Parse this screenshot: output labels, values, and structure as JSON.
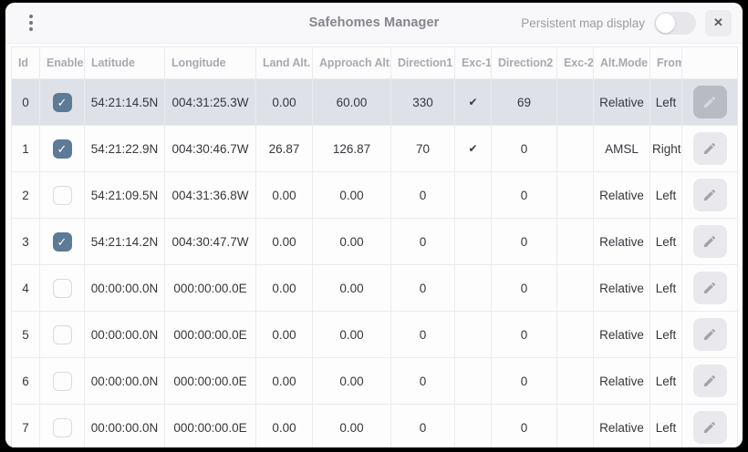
{
  "window": {
    "title": "Safehomes Manager",
    "persistent_toggle": {
      "label": "Persistent map display",
      "state": "off"
    },
    "close_glyph": "✕"
  },
  "glyphs": {
    "checkbox_check": "✓",
    "exc_check": "✔"
  },
  "colors": {
    "checkbox_checked": "#5d7a96",
    "selected_row": "#dee2e8",
    "titlebar_bg": "#f8f7f9",
    "header_text": "#a9a9b2",
    "cell_text": "#37373c"
  },
  "table": {
    "columns": [
      "Id",
      "Enable",
      "Latitude",
      "Longitude",
      "Land Alt.",
      "Approach Alt.",
      "Direction1",
      "Exc-1",
      "Direction2",
      "Exc-2",
      "Alt.Mode",
      "From",
      ""
    ],
    "rows": [
      {
        "id": "0",
        "enabled": true,
        "selected": true,
        "latitude": "54:21:14.5N",
        "longitude": "004:31:25.3W",
        "land_alt": "0.00",
        "approach_alt": "60.00",
        "direction1": "330",
        "exc1": true,
        "direction2": "69",
        "exc2": false,
        "alt_mode": "Relative",
        "from": "Left"
      },
      {
        "id": "1",
        "enabled": true,
        "selected": false,
        "latitude": "54:21:22.9N",
        "longitude": "004:30:46.7W",
        "land_alt": "26.87",
        "approach_alt": "126.87",
        "direction1": "70",
        "exc1": true,
        "direction2": "0",
        "exc2": false,
        "alt_mode": "AMSL",
        "from": "Right"
      },
      {
        "id": "2",
        "enabled": false,
        "selected": false,
        "latitude": "54:21:09.5N",
        "longitude": "004:31:36.8W",
        "land_alt": "0.00",
        "approach_alt": "0.00",
        "direction1": "0",
        "exc1": false,
        "direction2": "0",
        "exc2": false,
        "alt_mode": "Relative",
        "from": "Left"
      },
      {
        "id": "3",
        "enabled": true,
        "selected": false,
        "latitude": "54:21:14.2N",
        "longitude": "004:30:47.7W",
        "land_alt": "0.00",
        "approach_alt": "0.00",
        "direction1": "0",
        "exc1": false,
        "direction2": "0",
        "exc2": false,
        "alt_mode": "Relative",
        "from": "Left"
      },
      {
        "id": "4",
        "enabled": false,
        "selected": false,
        "latitude": "00:00:00.0N",
        "longitude": "000:00:00.0E",
        "land_alt": "0.00",
        "approach_alt": "0.00",
        "direction1": "0",
        "exc1": false,
        "direction2": "0",
        "exc2": false,
        "alt_mode": "Relative",
        "from": "Left"
      },
      {
        "id": "5",
        "enabled": false,
        "selected": false,
        "latitude": "00:00:00.0N",
        "longitude": "000:00:00.0E",
        "land_alt": "0.00",
        "approach_alt": "0.00",
        "direction1": "0",
        "exc1": false,
        "direction2": "0",
        "exc2": false,
        "alt_mode": "Relative",
        "from": "Left"
      },
      {
        "id": "6",
        "enabled": false,
        "selected": false,
        "latitude": "00:00:00.0N",
        "longitude": "000:00:00.0E",
        "land_alt": "0.00",
        "approach_alt": "0.00",
        "direction1": "0",
        "exc1": false,
        "direction2": "0",
        "exc2": false,
        "alt_mode": "Relative",
        "from": "Left"
      },
      {
        "id": "7",
        "enabled": false,
        "selected": false,
        "latitude": "00:00:00.0N",
        "longitude": "000:00:00.0E",
        "land_alt": "0.00",
        "approach_alt": "0.00",
        "direction1": "0",
        "exc1": false,
        "direction2": "0",
        "exc2": false,
        "alt_mode": "Relative",
        "from": "Left"
      }
    ]
  }
}
